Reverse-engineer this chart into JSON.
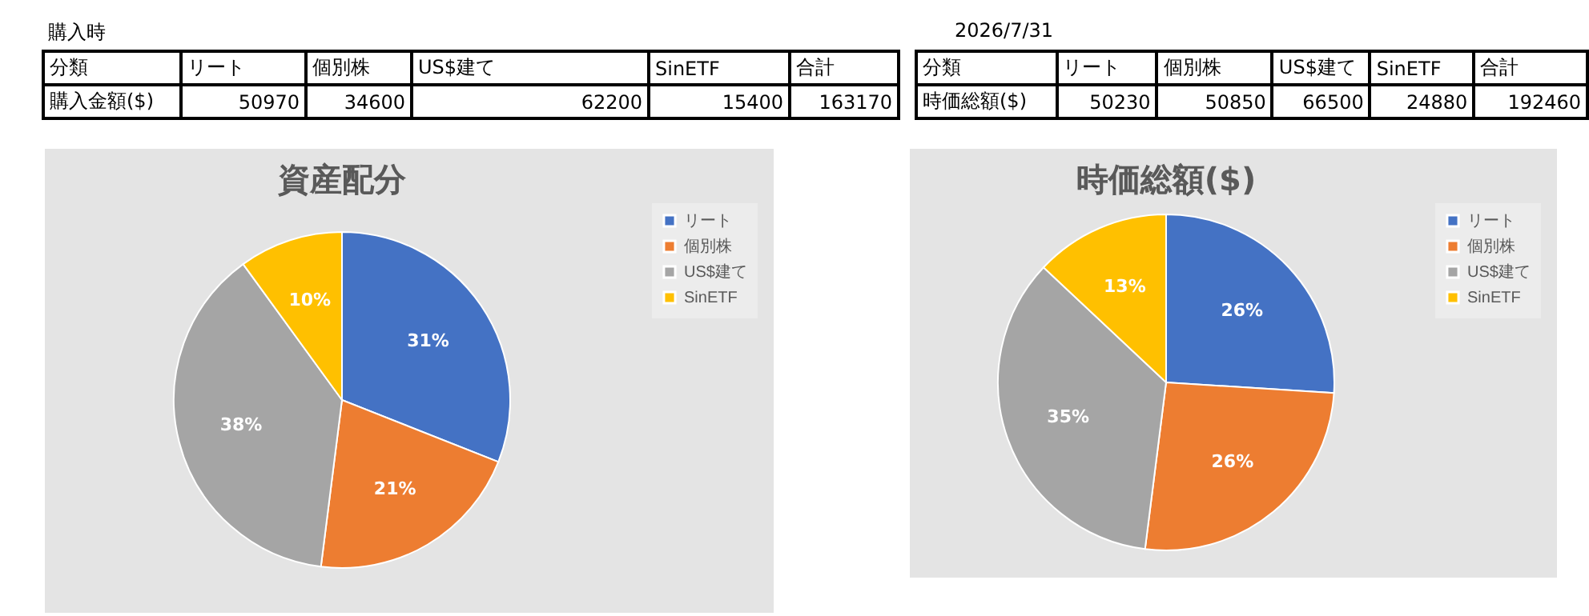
{
  "chart_data": [
    {
      "type": "pie",
      "title": "資産配分",
      "categories": [
        "リート",
        "個別株",
        "US$建て",
        "SinETF"
      ],
      "values": [
        31,
        21,
        38,
        10
      ],
      "colors": [
        "#4472c4",
        "#ed7d31",
        "#a5a5a5",
        "#ffc000"
      ],
      "value_labels": [
        "31%",
        "21%",
        "38%",
        "10%"
      ],
      "legend": "right",
      "annotations": [
        "購入時",
        "分類",
        "合計",
        "購入金額($)",
        "50970",
        "34600",
        "62200",
        "15400",
        "163170"
      ]
    },
    {
      "type": "pie",
      "title": "時価総額($)",
      "categories": [
        "リート",
        "個別株",
        "US$建て",
        "SinETF"
      ],
      "values": [
        26,
        26,
        35,
        13
      ],
      "colors": [
        "#4472c4",
        "#ed7d31",
        "#a5a5a5",
        "#ffc000"
      ],
      "value_labels": [
        "26%",
        "26%",
        "35%",
        "13%"
      ],
      "legend": "right",
      "annotations": [
        "2026/7/31",
        "分類",
        "合計",
        "時価総額($)",
        "50230",
        "50850",
        "66500",
        "24880",
        "192460"
      ]
    }
  ]
}
